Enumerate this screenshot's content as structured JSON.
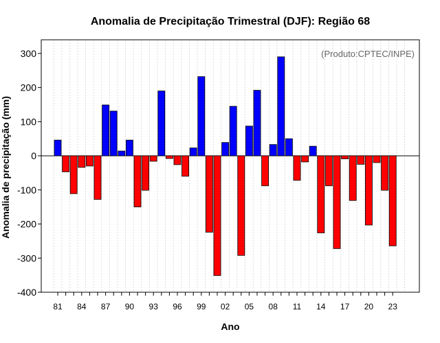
{
  "colors": {
    "positive": "#0000ff",
    "negative": "#ff0000",
    "grid": "#d0d0d0",
    "axis": "#000000"
  },
  "chart_data": {
    "type": "bar",
    "title": "Anomalia de Precipitação Trimestral (DJF): Região 68",
    "xlabel": "Ano",
    "ylabel": "Anomalia de precipitação (mm)",
    "credit": "(Produto:CPTEC/INPE)",
    "ylim": [
      -400,
      340
    ],
    "yticks": [
      -400,
      -300,
      -200,
      -100,
      0,
      100,
      200,
      300
    ],
    "grid": true,
    "x": [
      1981,
      1982,
      1983,
      1984,
      1985,
      1986,
      1987,
      1988,
      1989,
      1990,
      1991,
      1992,
      1993,
      1994,
      1995,
      1996,
      1997,
      1998,
      1999,
      2000,
      2001,
      2002,
      2003,
      2004,
      2005,
      2006,
      2007,
      2008,
      2009,
      2010,
      2011,
      2012,
      2013,
      2014,
      2015,
      2016,
      2017,
      2018,
      2019,
      2020,
      2021,
      2022,
      2023
    ],
    "xticks": [
      {
        "year": 1981,
        "label": "81"
      },
      {
        "year": 1984,
        "label": "84"
      },
      {
        "year": 1987,
        "label": "87"
      },
      {
        "year": 1990,
        "label": "90"
      },
      {
        "year": 1993,
        "label": "93"
      },
      {
        "year": 1996,
        "label": "96"
      },
      {
        "year": 1999,
        "label": "99"
      },
      {
        "year": 2002,
        "label": "02"
      },
      {
        "year": 2005,
        "label": "05"
      },
      {
        "year": 2008,
        "label": "08"
      },
      {
        "year": 2011,
        "label": "11"
      },
      {
        "year": 2014,
        "label": "14"
      },
      {
        "year": 2017,
        "label": "17"
      },
      {
        "year": 2020,
        "label": "20"
      },
      {
        "year": 2023,
        "label": "23"
      }
    ],
    "values": [
      46,
      -47,
      -111,
      -34,
      -30,
      -128,
      149,
      131,
      14,
      46,
      -150,
      -101,
      -16,
      190,
      -8,
      -26,
      -60,
      23,
      232,
      -224,
      -351,
      39,
      145,
      -292,
      87,
      192,
      -88,
      33,
      290,
      50,
      -72,
      -18,
      28,
      -226,
      -88,
      -272,
      -9,
      -131,
      -25,
      -203,
      -20,
      -101,
      -264
    ]
  }
}
